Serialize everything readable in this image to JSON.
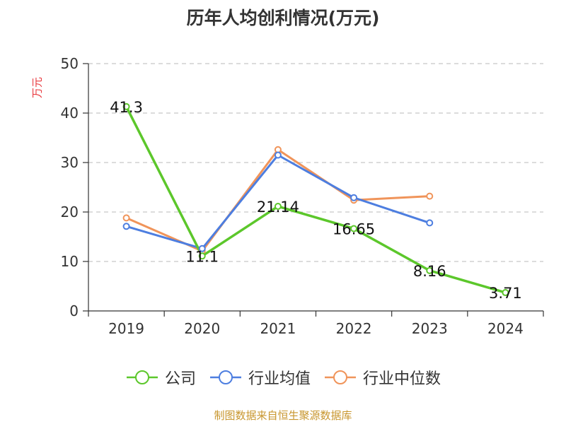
{
  "chart_data": {
    "type": "line",
    "title": "历年人均创利情况(万元)",
    "ylabel": "万元",
    "xlabel": "",
    "categories": [
      "2019",
      "2020",
      "2021",
      "2022",
      "2023",
      "2024"
    ],
    "ylim": [
      0,
      50
    ],
    "yticks": [
      "0",
      "10",
      "20",
      "30",
      "40",
      "50"
    ],
    "grid": true,
    "legend_position": "bottom",
    "series": [
      {
        "name": "公司",
        "color": "#5cc72b",
        "values": [
          41.3,
          11.1,
          21.14,
          16.65,
          8.16,
          3.71
        ],
        "labels": [
          "41.3",
          "11.1",
          "21.14",
          "16.65",
          "8.16",
          "3.71"
        ]
      },
      {
        "name": "行业均值",
        "color": "#4d7ee0",
        "values": [
          17.1,
          12.6,
          31.5,
          22.9,
          17.8,
          null
        ]
      },
      {
        "name": "行业中位数",
        "color": "#f0945a",
        "values": [
          18.8,
          12.1,
          32.6,
          22.4,
          23.2,
          null
        ]
      }
    ]
  },
  "footer": {
    "source": "制图数据来自恒生聚源数据库"
  }
}
